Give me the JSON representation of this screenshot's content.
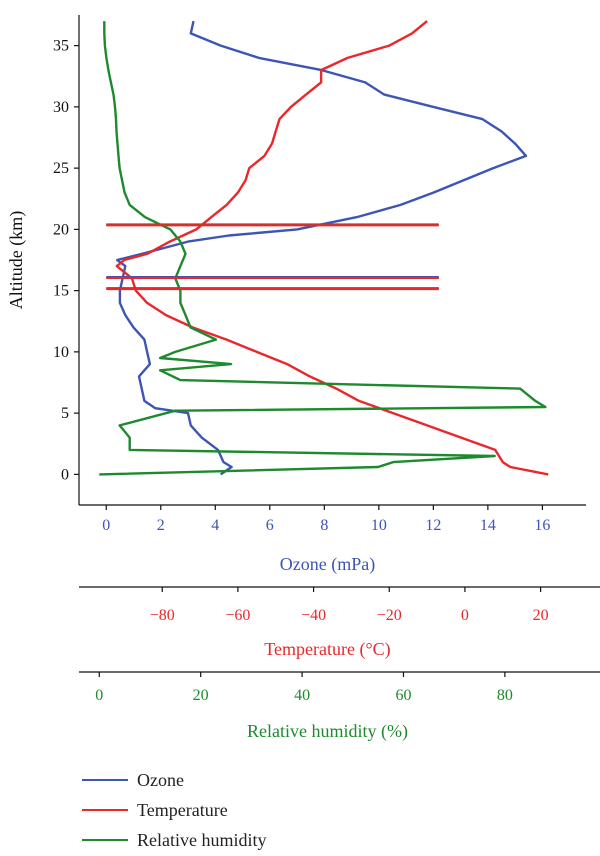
{
  "chart_data": {
    "type": "line",
    "y_axis": {
      "label": "Altitude (km)",
      "range": [
        -2.5,
        37.5
      ],
      "ticks": [
        0,
        5,
        10,
        15,
        20,
        25,
        30,
        35
      ]
    },
    "x_axes": [
      {
        "id": "ozone",
        "label": "Ozone (mPa)",
        "color": "#3d55b3",
        "range": [
          -1.0,
          17.6
        ],
        "ticks": [
          0,
          2,
          4,
          6,
          8,
          10,
          12,
          14,
          16
        ]
      },
      {
        "id": "temperature",
        "label": "Temperature (°C)",
        "color": "#e8282b",
        "range": [
          -102,
          32
        ],
        "ticks": [
          -80,
          -60,
          -40,
          -20,
          0,
          20
        ],
        "tick_labels": [
          "−80",
          "−60",
          "−40",
          "−20",
          "0",
          "20"
        ]
      },
      {
        "id": "humidity",
        "label": "Relative humidity (%)",
        "color": "#1e8a2e",
        "range": [
          -4,
          96
        ],
        "ticks": [
          0,
          20,
          40,
          60,
          80
        ]
      }
    ],
    "series": [
      {
        "name": "Ozone",
        "axis": "ozone",
        "color": "#3d55b3",
        "points": [
          [
            4.2,
            0
          ],
          [
            4.6,
            0.6
          ],
          [
            4.3,
            1.0
          ],
          [
            4.1,
            2
          ],
          [
            3.5,
            3
          ],
          [
            3.1,
            4
          ],
          [
            3.0,
            5
          ],
          [
            1.8,
            5.4
          ],
          [
            1.4,
            6
          ],
          [
            1.3,
            7
          ],
          [
            1.2,
            8
          ],
          [
            1.6,
            9
          ],
          [
            1.5,
            10
          ],
          [
            1.4,
            11
          ],
          [
            1.0,
            12
          ],
          [
            0.7,
            13
          ],
          [
            0.5,
            14
          ],
          [
            0.5,
            15
          ],
          [
            0.6,
            16
          ],
          [
            0.7,
            17
          ],
          [
            0.4,
            17.5
          ],
          [
            1.3,
            18
          ],
          [
            3.0,
            19
          ],
          [
            4.5,
            19.5
          ],
          [
            7.0,
            20
          ],
          [
            9.2,
            21
          ],
          [
            10.8,
            22
          ],
          [
            12.0,
            23
          ],
          [
            13.1,
            24
          ],
          [
            14.2,
            25
          ],
          [
            15.4,
            26
          ],
          [
            15.0,
            27
          ],
          [
            14.5,
            28
          ],
          [
            13.8,
            29
          ],
          [
            12.0,
            30
          ],
          [
            10.2,
            31
          ],
          [
            9.5,
            32
          ],
          [
            7.9,
            33
          ],
          [
            5.6,
            34
          ],
          [
            4.2,
            35
          ],
          [
            3.1,
            36
          ],
          [
            3.2,
            37
          ]
        ]
      },
      {
        "name": "Temperature",
        "axis": "temperature",
        "color": "#e8282b",
        "points": [
          [
            22,
            0
          ],
          [
            12,
            0.6
          ],
          [
            10,
            1
          ],
          [
            8,
            2
          ],
          [
            -1,
            3
          ],
          [
            -10,
            4
          ],
          [
            -19,
            5
          ],
          [
            -28,
            6
          ],
          [
            -34,
            7
          ],
          [
            -41,
            8
          ],
          [
            -47,
            9
          ],
          [
            -55,
            10
          ],
          [
            -63,
            11
          ],
          [
            -72,
            12
          ],
          [
            -79,
            13
          ],
          [
            -84,
            14
          ],
          [
            -87,
            15
          ],
          [
            -88,
            16
          ],
          [
            -92,
            17
          ],
          [
            -90,
            17.5
          ],
          [
            -84,
            18
          ],
          [
            -78,
            19
          ],
          [
            -71,
            20
          ],
          [
            -67,
            21
          ],
          [
            -63,
            22
          ],
          [
            -60,
            23
          ],
          [
            -58,
            24
          ],
          [
            -57,
            25
          ],
          [
            -53,
            26
          ],
          [
            -51,
            27
          ],
          [
            -50,
            28
          ],
          [
            -49,
            29
          ],
          [
            -46,
            30
          ],
          [
            -42,
            31
          ],
          [
            -38,
            32
          ],
          [
            -38,
            33
          ],
          [
            -31,
            34
          ],
          [
            -20,
            35
          ],
          [
            -14,
            36
          ],
          [
            -10,
            37
          ]
        ]
      },
      {
        "name": "Relative humidity",
        "axis": "humidity",
        "color": "#1e8a2e",
        "points": [
          [
            0,
            0
          ],
          [
            55,
            0.6
          ],
          [
            58,
            1
          ],
          [
            78,
            1.5
          ],
          [
            6,
            2
          ],
          [
            6,
            3
          ],
          [
            4,
            4
          ],
          [
            15,
            5.2
          ],
          [
            88,
            5.5
          ],
          [
            86,
            6
          ],
          [
            83,
            7
          ],
          [
            16,
            7.7
          ],
          [
            12,
            8.5
          ],
          [
            26,
            9
          ],
          [
            12,
            9.5
          ],
          [
            15,
            10
          ],
          [
            23,
            11
          ],
          [
            18,
            12
          ],
          [
            17,
            13
          ],
          [
            16,
            14
          ],
          [
            16,
            15
          ],
          [
            15,
            16
          ],
          [
            16,
            17
          ],
          [
            17,
            18
          ],
          [
            16,
            19
          ],
          [
            14,
            20
          ],
          [
            9,
            21
          ],
          [
            6,
            22
          ],
          [
            5,
            23
          ],
          [
            4.5,
            24
          ],
          [
            4,
            25
          ],
          [
            3.8,
            26
          ],
          [
            3.6,
            27
          ],
          [
            3.4,
            28
          ],
          [
            3.3,
            29
          ],
          [
            3.1,
            30
          ],
          [
            2.8,
            31
          ],
          [
            2.3,
            32
          ],
          [
            1.8,
            33
          ],
          [
            1.4,
            34
          ],
          [
            1.1,
            35
          ],
          [
            1.0,
            36
          ],
          [
            1.0,
            37
          ]
        ]
      }
    ],
    "horizontal_lines": [
      {
        "y": 20.4,
        "axis": "ozone",
        "x_start": 0,
        "x_end": 12.2,
        "colors": [
          "#1e8a2e",
          "#e8282b"
        ]
      },
      {
        "y": 16.1,
        "axis": "ozone",
        "x_start": 0,
        "x_end": 12.2,
        "colors": [
          "#3d55b3",
          "#e8282b"
        ]
      },
      {
        "y": 15.2,
        "axis": "ozone",
        "x_start": 0,
        "x_end": 12.2,
        "colors": [
          "#3d55b3",
          "#e8282b"
        ]
      }
    ],
    "legend": {
      "position": "bottom-left",
      "entries": [
        "Ozone",
        "Temperature",
        "Relative humidity"
      ]
    },
    "grid": false
  }
}
